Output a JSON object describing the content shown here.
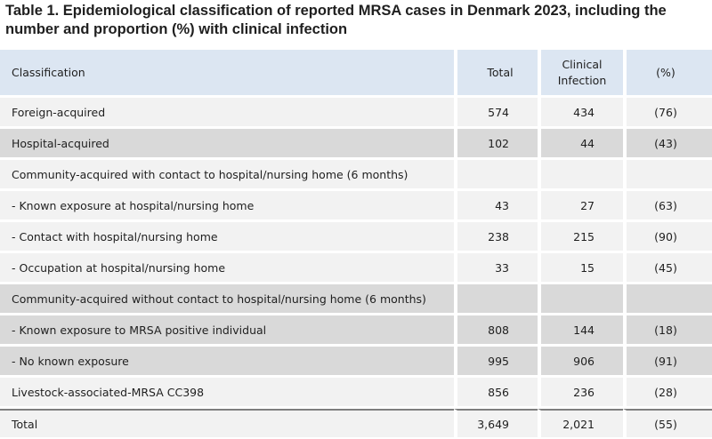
{
  "title": "Table 1. Epidemiological classification of reported MRSA cases in Denmark 2023, including the number and proportion (%) with clinical infection",
  "headers": {
    "classification": "Classification",
    "total": "Total",
    "clinical_line1": "Clinical",
    "clinical_line2": "Infection",
    "pct": "(%)"
  },
  "rows": [
    {
      "label": "Foreign-acquired",
      "total": "574",
      "clinical": "434",
      "pct": "(76)"
    },
    {
      "label": "Hospital-acquired",
      "total": "102",
      "clinical": "44",
      "pct": "(43)"
    },
    {
      "label": "Community-acquired with contact to hospital/nursing home (6 months)",
      "total": "",
      "clinical": "",
      "pct": ""
    },
    {
      "label": "- Known exposure at hospital/nursing home",
      "total": "43",
      "clinical": "27",
      "pct": "(63)"
    },
    {
      "label": "- Contact with hospital/nursing home",
      "total": "238",
      "clinical": "215",
      "pct": "(90)"
    },
    {
      "label": "- Occupation at hospital/nursing home",
      "total": "33",
      "clinical": "15",
      "pct": "(45)"
    },
    {
      "label": "Community-acquired without contact to hospital/nursing home (6 months)",
      "total": "",
      "clinical": "",
      "pct": ""
    },
    {
      "label": "- Known exposure to MRSA positive individual",
      "total": "808",
      "clinical": "144",
      "pct": "(18)"
    },
    {
      "label": "- No known exposure",
      "total": "995",
      "clinical": "906",
      "pct": "(91)"
    },
    {
      "label": "Livestock-associated-MRSA CC398",
      "total": "856",
      "clinical": "236",
      "pct": "(28)"
    }
  ],
  "total_row": {
    "label": "Total",
    "total": "3,649",
    "clinical": "2,021",
    "pct": "(55)"
  }
}
